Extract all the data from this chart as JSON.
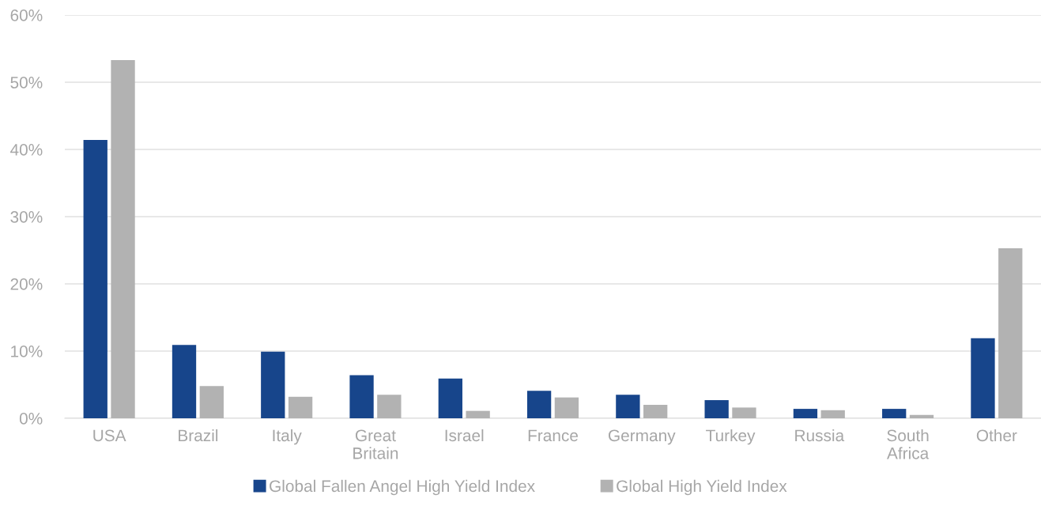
{
  "chart_data": {
    "type": "bar",
    "categories": [
      "USA",
      "Brazil",
      "Italy",
      "Great\nBritain",
      "Israel",
      "France",
      "Germany",
      "Turkey",
      "Russia",
      "South\nAfrica",
      "Other"
    ],
    "series": [
      {
        "name": "Global Fallen Angel High Yield Index",
        "color": "#17458b",
        "values": [
          41.4,
          10.9,
          9.9,
          6.4,
          5.9,
          4.1,
          3.5,
          2.7,
          1.4,
          1.4,
          11.9
        ]
      },
      {
        "name": "Global High Yield Index",
        "color": "#b2b2b2",
        "values": [
          53.3,
          4.8,
          3.2,
          3.5,
          1.1,
          3.1,
          2.0,
          1.6,
          1.2,
          0.5,
          25.3
        ]
      }
    ],
    "ylim": [
      0,
      60
    ],
    "yticks": [
      {
        "value": 0,
        "label": "0%"
      },
      {
        "value": 10,
        "label": "10%"
      },
      {
        "value": 20,
        "label": "20%"
      },
      {
        "value": 30,
        "label": "30%"
      },
      {
        "value": 40,
        "label": "40%"
      },
      {
        "value": 50,
        "label": "50%"
      },
      {
        "value": 60,
        "label": "60%"
      }
    ],
    "grid": "y",
    "legend": "bottom"
  }
}
